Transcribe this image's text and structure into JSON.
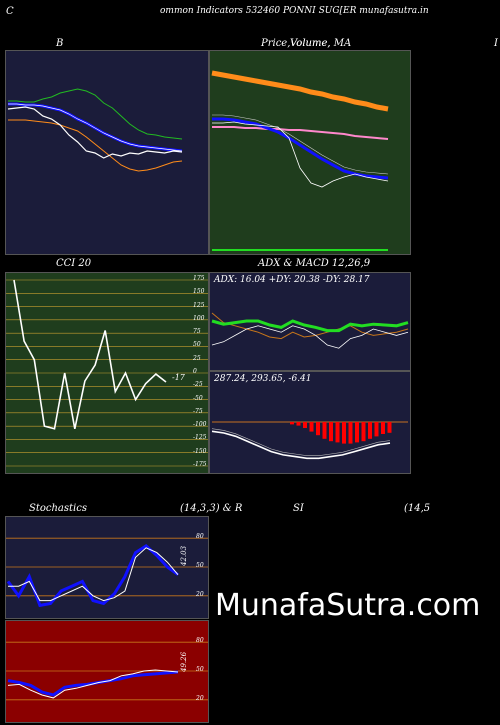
{
  "header": {
    "left_letter": "C",
    "title": "ommon  Indicators 532460  PONNI SUG[ER munafasutra.in"
  },
  "panels": {
    "bollinger": {
      "title": "B"
    },
    "price": {
      "title_a": "Price,",
      "title_b": "Volume,",
      "title_c": "Volume, MA"
    },
    "right_edge_letter": "I",
    "cci": {
      "title": "CCI 20",
      "last_value": "-17",
      "ticks": [
        "175",
        "150",
        "125",
        "100",
        "75",
        "50",
        "25",
        "0",
        "-25",
        "-50",
        "-75",
        "-100",
        "-125",
        "-150",
        "-175"
      ]
    },
    "adx": {
      "title": "ADX  & MACD 12,26,9",
      "line": "ADX: 16.04  +DY: 20.38  -DY: 28.17"
    },
    "macd": {
      "line": "287.24,  293.65,  -6.41"
    },
    "stoch": {
      "title_a": "Stochastics",
      "title_b": "(14,3,3) & R",
      "last_value": "42.03",
      "ticks": [
        "80",
        "50",
        "20"
      ]
    },
    "rsi": {
      "title_a": "SI",
      "title_b": "(14,5",
      "last_value": "49.26",
      "ticks": [
        "80",
        "50",
        "20"
      ]
    }
  },
  "watermark": "MunafaSutra.com",
  "colors": {
    "navy_panel": "#1b1c3a",
    "green_panel": "#1f3d1d",
    "red_panel": "#8b0000",
    "orange": "#ff8c1a",
    "blue": "#1010ff",
    "bright_green": "#22dd22"
  },
  "chart_data": [
    {
      "type": "line",
      "name": "Bollinger Bands",
      "series": [
        {
          "values": [
            108,
            107,
            106,
            108,
            115,
            118,
            124,
            134,
            141,
            150,
            152,
            157,
            153,
            155,
            152,
            153,
            150,
            151,
            152,
            150,
            151
          ]
        },
        {
          "values": [
            103,
            103,
            104,
            104,
            105,
            107,
            109,
            113,
            118,
            122,
            127,
            132,
            136,
            140,
            143,
            145,
            146,
            147,
            148,
            149,
            150
          ]
        },
        {
          "values": [
            100,
            100,
            101,
            101,
            98,
            96,
            92,
            90,
            88,
            90,
            94,
            102,
            107,
            115,
            123,
            129,
            133,
            134,
            136,
            137,
            138
          ]
        },
        {
          "values": [
            119,
            119,
            119,
            120,
            121,
            122,
            124,
            127,
            130,
            136,
            143,
            150,
            157,
            164,
            168,
            170,
            169,
            167,
            164,
            161,
            160
          ]
        }
      ]
    },
    {
      "type": "line",
      "name": "Price and moving averages",
      "series": [
        {
          "values": [
            72,
            74,
            76,
            78,
            80,
            82,
            84,
            86,
            88,
            91,
            93,
            96,
            98,
            101,
            103,
            106,
            108
          ]
        },
        {
          "values": [
            126,
            126,
            126,
            127,
            127,
            128,
            128,
            129,
            129,
            130,
            131,
            132,
            133,
            135,
            136,
            137,
            138
          ]
        },
        {
          "values": [
            118,
            118,
            119,
            121,
            123,
            127,
            131,
            137,
            144,
            151,
            158,
            164,
            170,
            173,
            175,
            176,
            177
          ]
        },
        {
          "values": [
            122,
            122,
            121,
            123,
            124,
            125,
            126,
            137,
            167,
            182,
            186,
            180,
            176,
            173,
            176,
            178,
            180
          ]
        }
      ]
    },
    {
      "type": "line",
      "name": "CCI 20",
      "ylim": [
        -175,
        175
      ],
      "x": [
        0,
        1,
        2,
        3,
        4,
        5,
        6,
        7,
        8,
        9,
        10,
        11,
        12,
        13,
        14,
        15
      ],
      "values": [
        175,
        60,
        25,
        -100,
        -105,
        0,
        -105,
        -15,
        15,
        80,
        -35,
        0,
        -50,
        -20,
        -2,
        -17
      ]
    },
    {
      "type": "line",
      "name": "ADX",
      "series": [
        {
          "values": [
            50,
            44,
            42,
            40,
            38,
            35,
            34,
            38,
            35,
            36,
            38,
            40,
            42,
            38,
            36,
            37,
            38,
            40
          ]
        },
        {
          "values": [
            30,
            32,
            36,
            40,
            42,
            40,
            38,
            42,
            40,
            36,
            30,
            28,
            34,
            36,
            40,
            38,
            36,
            38
          ]
        }
      ]
    },
    {
      "type": "bar",
      "name": "MACD histogram",
      "values": [
        -2,
        -3,
        -5,
        -8,
        -11,
        -14,
        -16,
        -17,
        -18,
        -18,
        -17,
        -16,
        -14,
        -12,
        -10,
        -9
      ]
    },
    {
      "type": "line",
      "name": "Stochastics",
      "ylim": [
        0,
        100
      ],
      "series": [
        {
          "values": [
            30,
            30,
            35,
            15,
            15,
            20,
            25,
            30,
            20,
            15,
            18,
            25,
            60,
            70,
            65,
            55,
            42
          ]
        },
        {
          "values": [
            35,
            20,
            40,
            10,
            12,
            25,
            30,
            35,
            15,
            12,
            22,
            40,
            65,
            72,
            62,
            50,
            42
          ]
        }
      ]
    },
    {
      "type": "line",
      "name": "RSI",
      "ylim": [
        0,
        100
      ],
      "series": [
        {
          "values": [
            35,
            36,
            30,
            25,
            22,
            30,
            32,
            35,
            38,
            40,
            45,
            47,
            50,
            51,
            50,
            49
          ]
        },
        {
          "values": [
            40,
            38,
            35,
            28,
            25,
            33,
            35,
            36,
            38,
            40,
            42,
            45,
            46,
            47,
            48,
            49
          ]
        }
      ]
    }
  ]
}
